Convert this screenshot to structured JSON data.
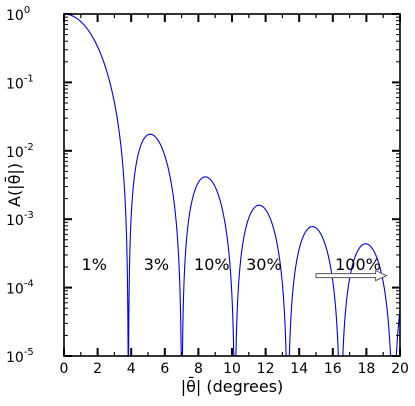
{
  "chart_data": {
    "type": "line",
    "xlabel": "|θ̄| (degrees)",
    "ylabel": "A(|θ̄|)",
    "xlim": [
      0,
      20
    ],
    "ylim_log10": [
      -5,
      0
    ],
    "yscale": "log",
    "grid": false,
    "x_ticks": [
      0,
      2,
      4,
      6,
      8,
      10,
      12,
      14,
      16,
      18,
      20
    ],
    "y_ticks": [
      {
        "base": "10",
        "exp": "0"
      },
      {
        "base": "10",
        "exp": "-1"
      },
      {
        "base": "10",
        "exp": "-2"
      },
      {
        "base": "10",
        "exp": "-3"
      },
      {
        "base": "10",
        "exp": "-4"
      },
      {
        "base": "10",
        "exp": "-5"
      }
    ],
    "line_color": "#0000ee",
    "zeros": [
      3.83,
      7.02,
      10.17,
      13.32,
      16.47,
      19.62
    ],
    "lobe_peaks": [
      {
        "x": 5.14,
        "y": 0.0175
      },
      {
        "x": 8.42,
        "y": 0.0042
      },
      {
        "x": 11.62,
        "y": 0.0016
      },
      {
        "x": 14.8,
        "y": 0.00078
      },
      {
        "x": 17.96,
        "y": 0.00044
      }
    ],
    "annotations": [
      {
        "text": "1%",
        "x": 1.8,
        "y": 0.00022
      },
      {
        "text": "3%",
        "x": 5.5,
        "y": 0.00022
      },
      {
        "text": "10%",
        "x": 8.8,
        "y": 0.00022
      },
      {
        "text": "30%",
        "x": 11.9,
        "y": 0.00022
      },
      {
        "text": "100%",
        "x": 17.5,
        "y": 0.00022
      }
    ],
    "arrow": {
      "x_start": 15.0,
      "x_end": 19.2,
      "y": 0.00015
    }
  }
}
